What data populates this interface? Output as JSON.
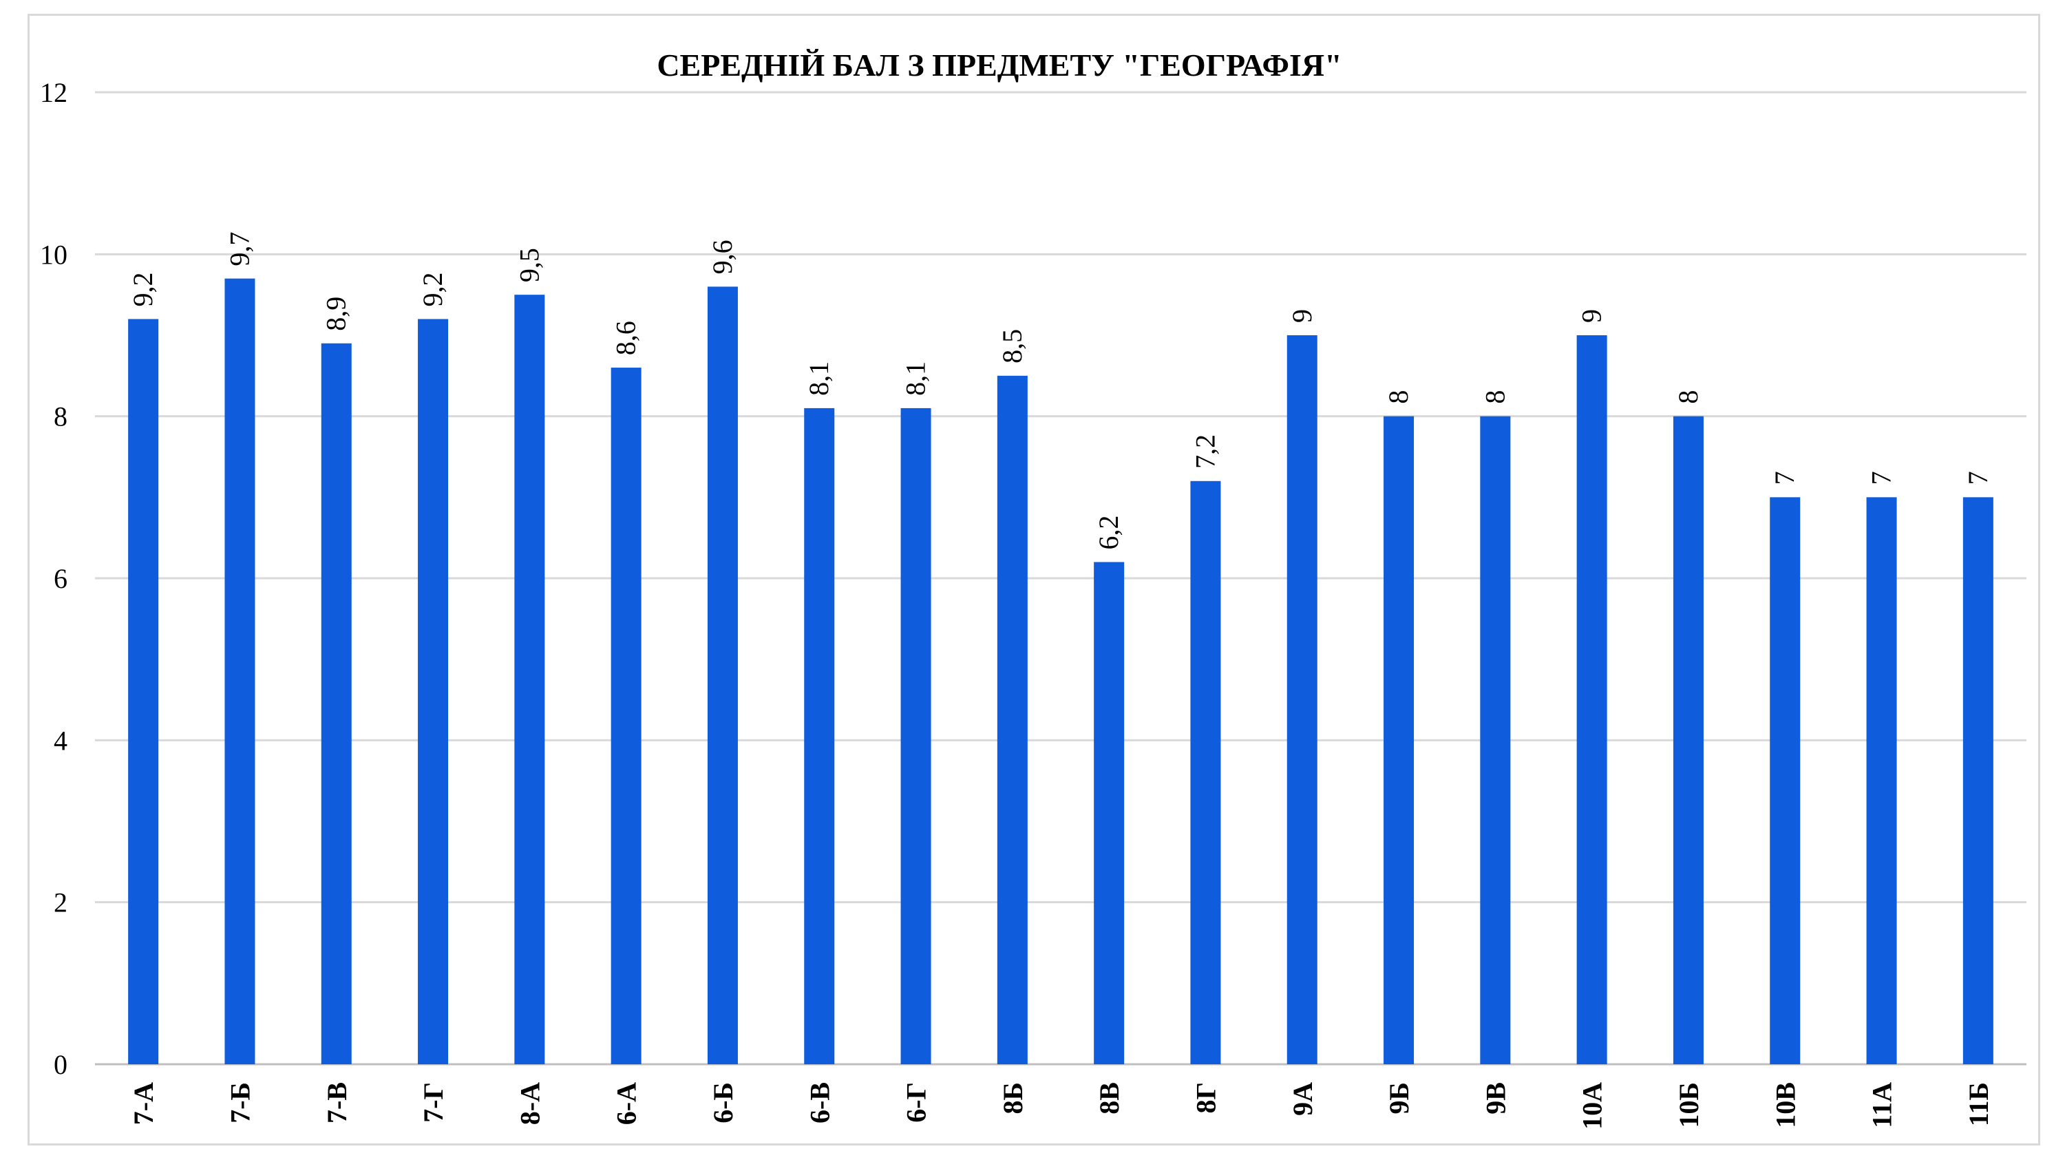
{
  "chart_data": {
    "type": "bar",
    "title": "СЕРЕДНІЙ БАЛ З ПРЕДМЕТУ \"ГЕОГРАФІЯ\"",
    "xlabel": "",
    "ylabel": "",
    "ylim": [
      0,
      12
    ],
    "yticks": [
      "0",
      "2",
      "4",
      "6",
      "8",
      "10",
      "12"
    ],
    "grid": true,
    "legend": "none",
    "bar_color": "#0f5cdc",
    "categories": [
      "7-А",
      "7-Б",
      "7-В",
      "7-Г",
      "8-А",
      "6-А",
      "6-Б",
      "6-В",
      "6-Г",
      "8Б",
      "8В",
      "8Г",
      "9А",
      "9Б",
      "9В",
      "10А",
      "10Б",
      "10В",
      "11А",
      "11Б"
    ],
    "values": [
      9.2,
      9.7,
      8.9,
      9.2,
      9.5,
      8.6,
      9.6,
      8.1,
      8.1,
      8.5,
      6.2,
      7.2,
      9,
      8,
      8,
      9,
      8,
      7,
      7,
      7
    ],
    "data_labels": [
      "9,2",
      "9,7",
      "8,9",
      "9,2",
      "9,5",
      "8,6",
      "9,6",
      "8,1",
      "8,1",
      "8,5",
      "6,2",
      "7,2",
      "9",
      "8",
      "8",
      "9",
      "8",
      "7",
      "7",
      "7"
    ]
  }
}
